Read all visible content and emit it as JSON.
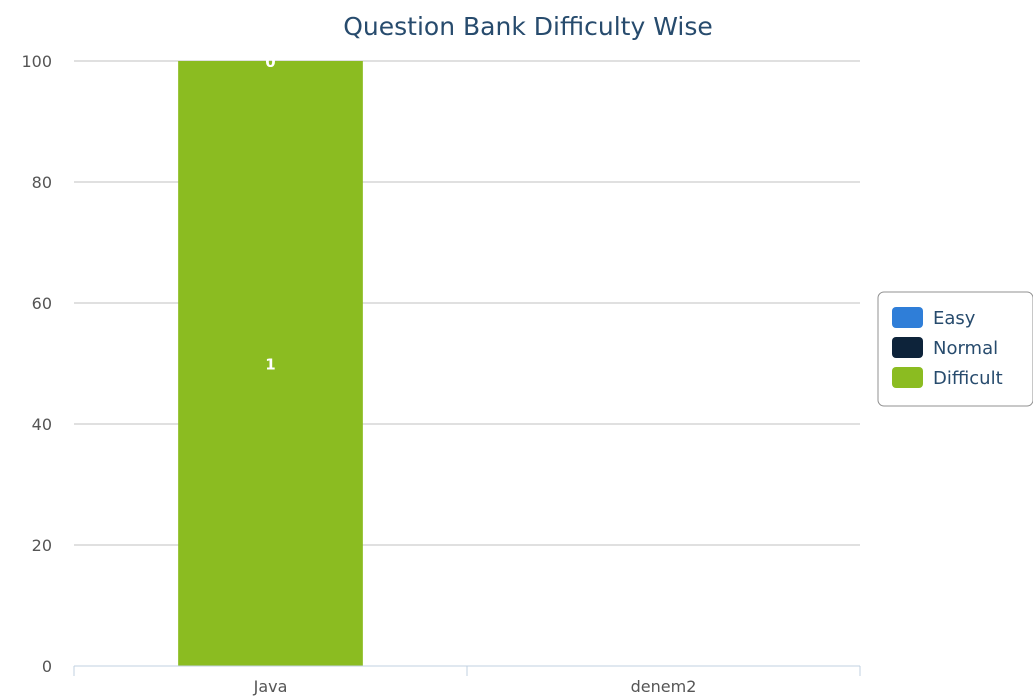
{
  "chart_data": {
    "type": "bar",
    "stacked": true,
    "title": "Question Bank Difficulty Wise",
    "categories": [
      "Java",
      "denem2"
    ],
    "series": [
      {
        "name": "Easy",
        "color": "#2f7ed8",
        "values": [
          0,
          0
        ]
      },
      {
        "name": "Normal",
        "color": "#0d233a",
        "values": [
          0,
          0
        ]
      },
      {
        "name": "Difficult",
        "color": "#8bbc21",
        "values": [
          100,
          0
        ]
      }
    ],
    "data_labels": {
      "Java": [
        "0",
        "1"
      ]
    },
    "ylim": [
      0,
      100
    ],
    "yticks": [
      0,
      20,
      40,
      60,
      80,
      100
    ],
    "grid": true,
    "legend_position": "right"
  }
}
